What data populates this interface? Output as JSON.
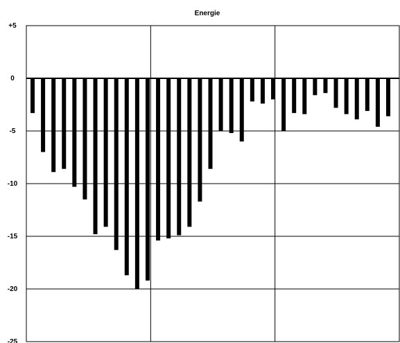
{
  "chart_data": {
    "type": "bar",
    "title": "Energie",
    "xlabel": "",
    "ylabel": "",
    "ylim": [
      -25,
      5
    ],
    "yticks": [
      5,
      0,
      -5,
      -10,
      -15,
      -20,
      -25
    ],
    "ytick_labels": [
      "+5",
      "0",
      "-5",
      "-10",
      "-15",
      "-20",
      "-25"
    ],
    "grid": true,
    "vertical_gridlines": 2,
    "bar_color": "#000000",
    "values": [
      -3.3,
      -7.0,
      -8.9,
      -8.6,
      -10.3,
      -11.5,
      -14.8,
      -14.1,
      -16.3,
      -18.7,
      -20.0,
      -19.2,
      -15.4,
      -15.2,
      -14.9,
      -14.1,
      -11.7,
      -8.6,
      -5.0,
      -5.2,
      -6.0,
      -2.2,
      -2.4,
      -2.0,
      -5.0,
      -3.3,
      -3.4,
      -1.6,
      -1.4,
      -2.8,
      -3.4,
      -3.9,
      -3.1,
      -4.6,
      -3.6
    ]
  }
}
